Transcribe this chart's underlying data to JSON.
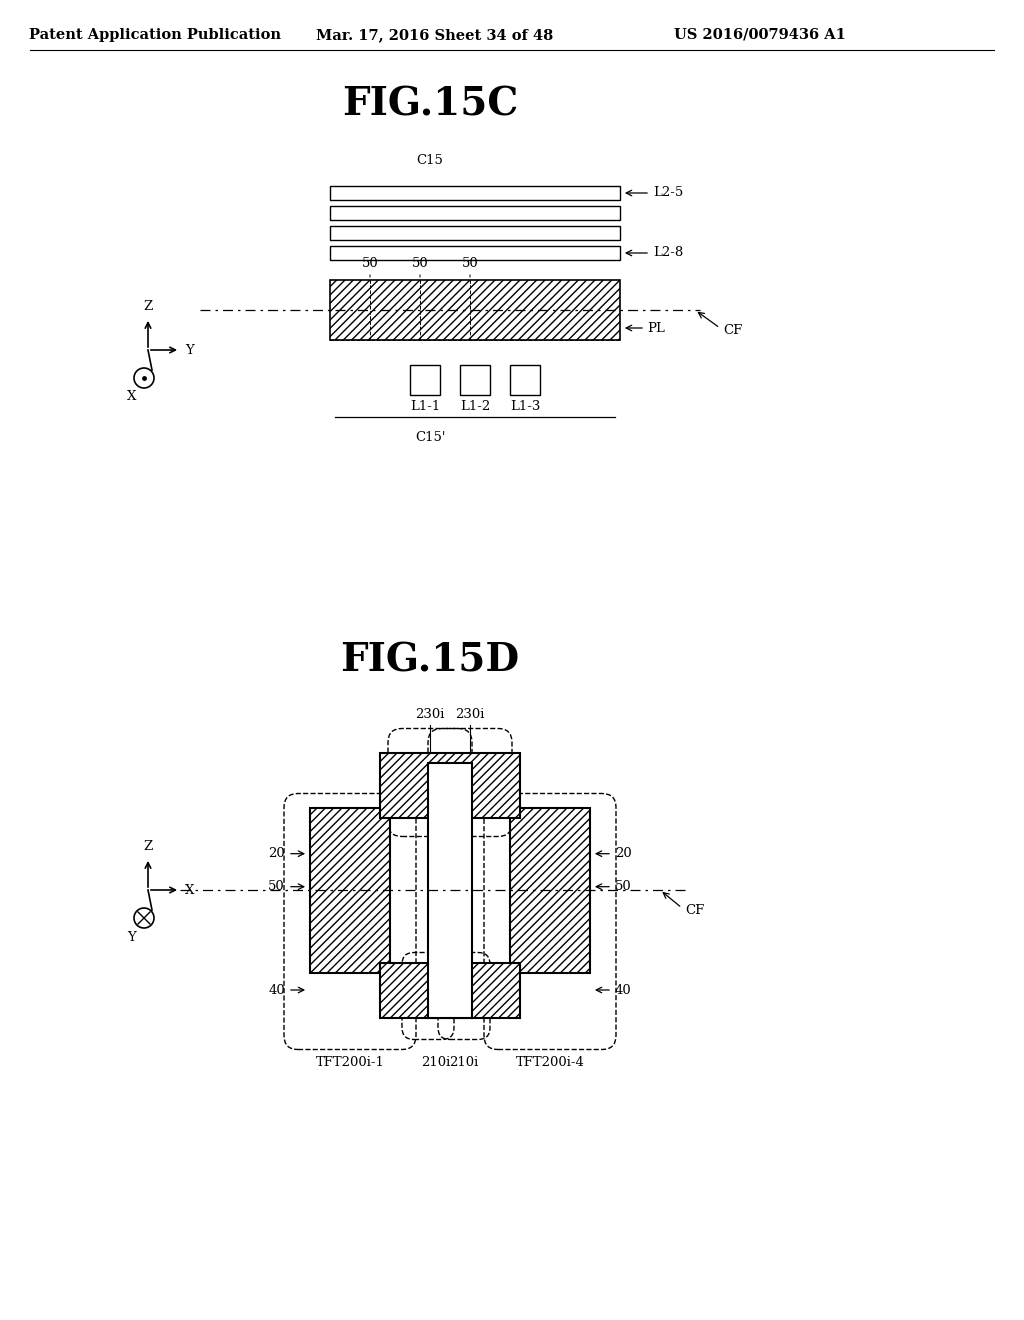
{
  "bg_color": "#ffffff",
  "header_text": "Patent Application Publication",
  "header_date": "Mar. 17, 2016 Sheet 34 of 48",
  "header_patent": "US 2016/0079436 A1",
  "fig15c_title": "FIG.15C",
  "fig15d_title": "FIG.15D",
  "label_C15": "C15",
  "label_C15prime": "C15'",
  "label_L25": "L2-5",
  "label_L28": "L2-8",
  "label_CF_15c": "CF",
  "label_PL": "PL",
  "label_50_1": "50",
  "label_50_2": "50",
  "label_50_3": "50",
  "label_L11": "L1-1",
  "label_L12": "L1-2",
  "label_L13": "L1-3",
  "label_230i_1": "230i",
  "label_230i_2": "230i",
  "label_20_left": "20",
  "label_20_right": "20",
  "label_50_left": "50",
  "label_50_right": "50",
  "label_40_left": "40",
  "label_40_right": "40",
  "label_CF_15d": "CF",
  "label_TFT1": "TFT200i-1",
  "label_TFT4": "TFT200i-4",
  "label_210i_1": "210i",
  "label_210i_2": "210i",
  "line_color": "#000000"
}
